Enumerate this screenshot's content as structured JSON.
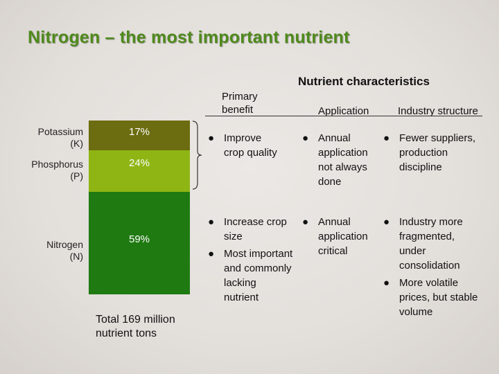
{
  "title": "Nitrogen – the most important nutrient",
  "section_title": "Nutrient characteristics",
  "columns": {
    "primary_benefit": "Primary\nbenefit",
    "application": "Application",
    "industry_structure": "Industry structure"
  },
  "bar": {
    "segments": [
      {
        "label": "Potassium\n(K)",
        "percent": 17,
        "percent_text": "17%",
        "color": "#6c6c10"
      },
      {
        "label": "Phosphorus\n(P)",
        "percent": 24,
        "percent_text": "24%",
        "color": "#8fb514"
      },
      {
        "label": "Nitrogen\n(N)",
        "percent": 59,
        "percent_text": "59%",
        "color": "#1f7a12"
      }
    ],
    "total": "Total 169 million\nnutrient tons"
  },
  "rows": [
    {
      "group": "Potassium and Phosphorus",
      "primary_benefit": [
        "Improve\ncrop quality"
      ],
      "application": [
        "Annual\napplication\nnot always\ndone"
      ],
      "industry_structure": [
        "Fewer suppliers,\nproduction\ndiscipline"
      ]
    },
    {
      "group": "Nitrogen",
      "primary_benefit": [
        "Increase crop\nsize",
        "Most important\nand commonly\nlacking\nnutrient"
      ],
      "application": [
        "Annual\napplication\ncritical"
      ],
      "industry_structure": [
        "Industry more\nfragmented,\nunder\nconsolidation",
        "More volatile\nprices, but stable\nvolume"
      ]
    }
  ],
  "bullet_glyph": "●",
  "colors": {
    "title": "#4f8a1c"
  }
}
